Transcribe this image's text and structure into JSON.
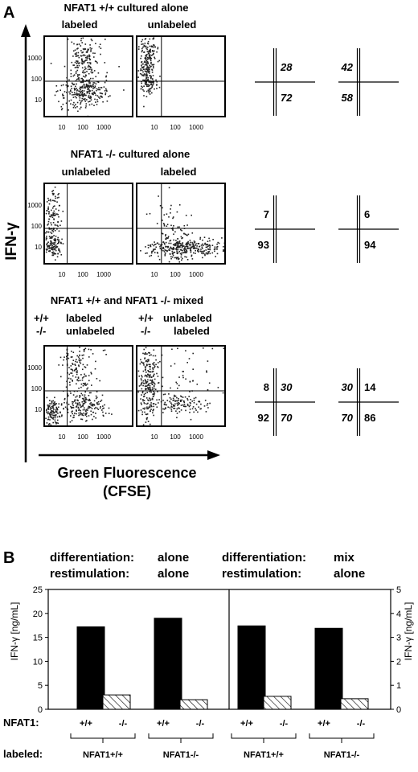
{
  "panel_a": {
    "panel_label": "A",
    "y_axis_label": "IFN-γ",
    "x_axis_label_line1": "Green Fluorescence",
    "x_axis_label_line2": "(CFSE)",
    "tick_labels_x": [
      "10",
      "100",
      "1000"
    ],
    "tick_labels_y": [
      "10",
      "100",
      "1000"
    ],
    "rows": [
      {
        "title": "NFAT1 +/+ cultured alone",
        "left_plot_label": "labeled",
        "right_plot_label": "unlabeled",
        "quadrants": [
          {
            "top_right": "28",
            "bottom_right": "72"
          },
          {
            "top_left": "42",
            "bottom_left": "58"
          }
        ]
      },
      {
        "title": "NFAT1 -/- cultured alone",
        "left_plot_label": "unlabeled",
        "right_plot_label": "labeled",
        "quadrants": [
          {
            "top_left": "7",
            "bottom_left": "93"
          },
          {
            "top_right": "6",
            "bottom_right": "94"
          }
        ]
      },
      {
        "title": "NFAT1 +/+ and NFAT1 -/- mixed",
        "left_plot_geno_1": "+/+",
        "left_plot_geno_2": "-/-",
        "left_plot_label_1": "labeled",
        "left_plot_label_2": "unlabeled",
        "right_plot_geno_1": "+/+",
        "right_plot_geno_2": "-/-",
        "right_plot_label_1": "unlabeled",
        "right_plot_label_2": "labeled",
        "quadrants": [
          {
            "top_left": "8",
            "bottom_left": "92",
            "top_right": "30",
            "bottom_right": "70"
          },
          {
            "top_left": "30",
            "bottom_left": "70",
            "top_right": "14",
            "bottom_right": "86"
          }
        ]
      }
    ]
  },
  "panel_b": {
    "panel_label": "B",
    "left_group": {
      "row1_label": "differentiation:",
      "row1_value": "alone",
      "row2_label": "restimulation:",
      "row2_value": "alone"
    },
    "right_group": {
      "row1_label": "differentiation:",
      "row1_value": "mix",
      "row2_label": "restimulation:",
      "row2_value": "alone"
    },
    "footer_row1_label": "NFAT1:",
    "footer_row2_label": "labeled:",
    "colors": {
      "wt_bar": "#000000",
      "ko_bar_hatch": "#000000"
    }
  },
  "chart_data": {
    "type": "bar",
    "ylabel_left": "IFN-γ [ng/mL]",
    "ylabel_right": "IFN-γ [ng/mL]",
    "ylim_left": [
      0,
      25
    ],
    "ylim_right": [
      0,
      5
    ],
    "yticks_left": [
      "0",
      "5",
      "10",
      "15",
      "20",
      "25"
    ],
    "yticks_right": [
      "0",
      "1",
      "2",
      "3",
      "4",
      "5"
    ],
    "categories": [
      "+/+",
      "-/-",
      "+/+",
      "-/-",
      "+/+",
      "-/-",
      "+/+",
      "-/-"
    ],
    "labeled_groups": [
      "NFAT1+/+",
      "NFAT1-/-",
      "NFAT1+/+",
      "NFAT1-/-"
    ],
    "values": [
      17.2,
      3.0,
      19.0,
      2.0,
      17.4,
      2.7,
      16.9,
      2.2
    ],
    "grid": false
  }
}
